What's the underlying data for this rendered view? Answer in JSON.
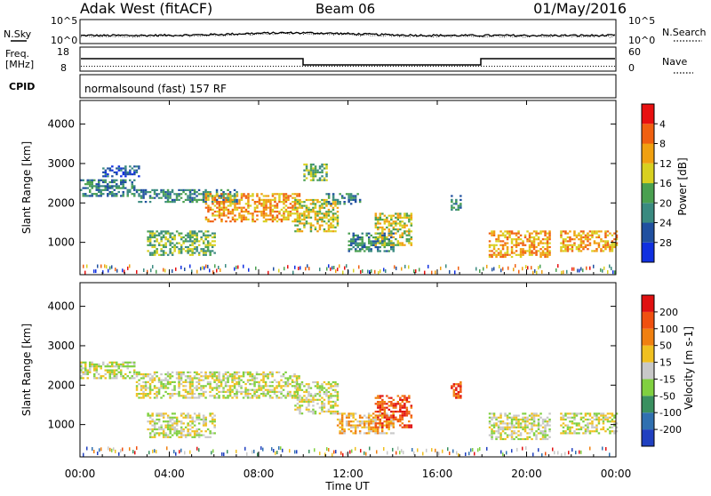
{
  "header": {
    "station": "Adak West (fitACF)",
    "beam": "Beam 06",
    "date": "01/May/2016"
  },
  "noise_panel": {
    "left_label": "N.Sky",
    "left_ticks": [
      "10^5",
      "10^0"
    ],
    "right_label": "N.Search",
    "right_ticks": [
      "10^5",
      "10^0"
    ]
  },
  "freq_panel": {
    "left_label_line1": "Freq.",
    "left_label_line2": "[MHz]",
    "left_ticks": [
      "18",
      "8"
    ],
    "right_label": "Nave",
    "right_ticks": [
      "60",
      "0"
    ]
  },
  "cpid_panel": {
    "label": "CPID",
    "program": "normalsound (fast) 157 RF"
  },
  "xaxis": {
    "label": "Time UT",
    "ticks": [
      "00:00",
      "04:00",
      "08:00",
      "12:00",
      "16:00",
      "20:00",
      "00:00"
    ]
  },
  "chart_data": [
    {
      "type": "heatmap",
      "title": "",
      "ylabel": "Slant Range [km]",
      "xlabel": "",
      "x_range_hours": [
        0,
        24
      ],
      "ylim": [
        180,
        4600
      ],
      "yticks": [
        1000,
        2000,
        3000,
        4000
      ],
      "colorbar": {
        "label": "Power [dB]",
        "ticks": [
          "4",
          "8",
          "12",
          "16",
          "20",
          "24",
          "28"
        ],
        "colors": [
          "#1030e0",
          "#2050a0",
          "#3a8a80",
          "#4aa050",
          "#d8d020",
          "#f0a010",
          "#f06010",
          "#e81010"
        ]
      },
      "echo_regions": [
        {
          "t0": 0.0,
          "t1": 2.4,
          "r0": 2200,
          "r1": 2600,
          "level": 2
        },
        {
          "t0": 1.0,
          "t1": 2.6,
          "r0": 2700,
          "r1": 2950,
          "level": 1
        },
        {
          "t0": 3.0,
          "t1": 6.0,
          "r0": 700,
          "r1": 1300,
          "level": 3
        },
        {
          "t0": 2.5,
          "t1": 7.0,
          "r0": 2050,
          "r1": 2350,
          "level": 2
        },
        {
          "t0": 5.6,
          "t1": 9.8,
          "r0": 1550,
          "r1": 2250,
          "level": 5
        },
        {
          "t0": 9.6,
          "t1": 11.5,
          "r0": 1300,
          "r1": 2100,
          "level": 4
        },
        {
          "t0": 10.0,
          "t1": 11.0,
          "r0": 2600,
          "r1": 3000,
          "level": 3
        },
        {
          "t0": 11.0,
          "t1": 12.5,
          "r0": 2000,
          "r1": 2250,
          "level": 2
        },
        {
          "t0": 12.0,
          "t1": 14.0,
          "r0": 800,
          "r1": 1250,
          "level": 2
        },
        {
          "t0": 13.2,
          "t1": 14.8,
          "r0": 950,
          "r1": 1750,
          "level": 4
        },
        {
          "t0": 16.6,
          "t1": 17.0,
          "r0": 1850,
          "r1": 2200,
          "level": 2
        },
        {
          "t0": 18.3,
          "t1": 21.0,
          "r0": 650,
          "r1": 1300,
          "level": 5
        },
        {
          "t0": 21.5,
          "t1": 24.0,
          "r0": 800,
          "r1": 1300,
          "level": 5
        }
      ]
    },
    {
      "type": "heatmap",
      "title": "",
      "ylabel": "Slant Range [km]",
      "xlabel": "Time UT",
      "x_range_hours": [
        0,
        24
      ],
      "ylim": [
        180,
        4600
      ],
      "yticks": [
        1000,
        2000,
        3000,
        4000
      ],
      "colorbar": {
        "label": "Velocity [m s-1]",
        "ticks": [
          "200",
          "100",
          "50",
          "15",
          "-15",
          "-50",
          "-100",
          "-200"
        ],
        "colors": [
          "#2040c0",
          "#3070b0",
          "#3a9060",
          "#80d040",
          "#c8c8c8",
          "#f0c020",
          "#f08010",
          "#f05010",
          "#e01010"
        ]
      },
      "echo_regions": [
        {
          "t0": 0.0,
          "t1": 2.4,
          "r0": 2200,
          "r1": 2600,
          "level": 4
        },
        {
          "t0": 3.0,
          "t1": 6.0,
          "r0": 700,
          "r1": 1300,
          "level": 4
        },
        {
          "t0": 2.5,
          "t1": 9.8,
          "r0": 1700,
          "r1": 2350,
          "level": 4
        },
        {
          "t0": 9.6,
          "t1": 11.5,
          "r0": 1300,
          "r1": 2100,
          "level": 4
        },
        {
          "t0": 11.5,
          "t1": 14.0,
          "r0": 800,
          "r1": 1300,
          "level": 5
        },
        {
          "t0": 13.2,
          "t1": 14.8,
          "r0": 950,
          "r1": 1750,
          "level": 7
        },
        {
          "t0": 16.6,
          "t1": 17.0,
          "r0": 1700,
          "r1": 2100,
          "level": 7
        },
        {
          "t0": 18.3,
          "t1": 21.0,
          "r0": 650,
          "r1": 1300,
          "level": 4
        },
        {
          "t0": 21.5,
          "t1": 24.0,
          "r0": 800,
          "r1": 1300,
          "level": 4
        }
      ]
    }
  ]
}
